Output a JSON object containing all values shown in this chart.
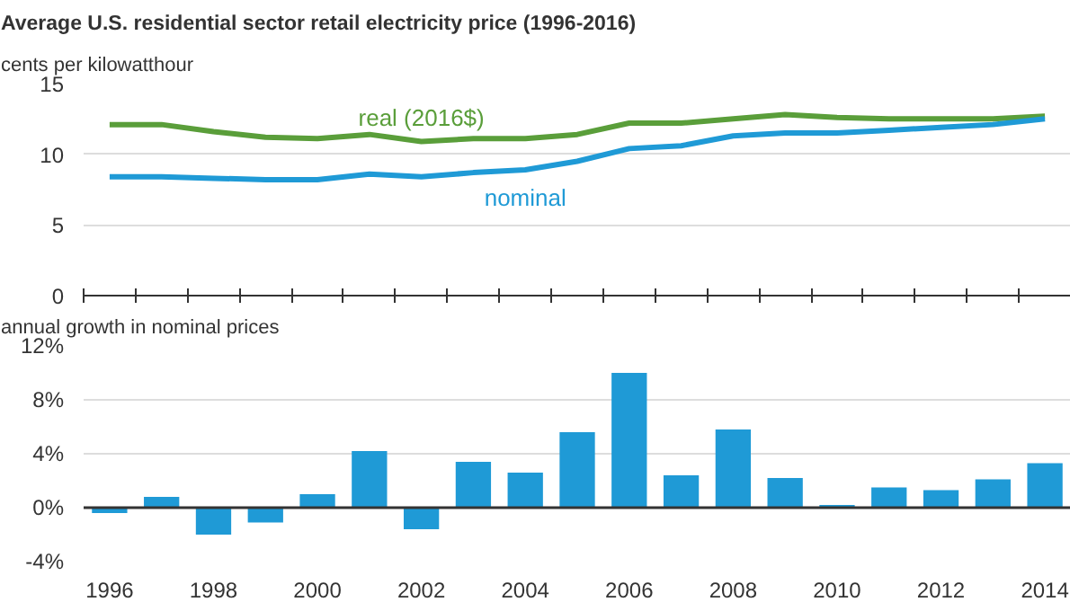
{
  "chart_data": [
    {
      "type": "line",
      "title": "Average U.S. residential sector retail electricity price (1996-2016)",
      "ylabel": "cents per kilowatthour",
      "categories": [
        "1996",
        null,
        "1998",
        null,
        "2000",
        null,
        "2002",
        null,
        "2004",
        null,
        "2006",
        null,
        "2008",
        null,
        "2010",
        null,
        "2012",
        null,
        "2014"
      ],
      "series": [
        {
          "name": "real (2016$)",
          "color": "#5a9e3a",
          "values": [
            12.1,
            12.1,
            11.6,
            11.2,
            11.1,
            11.4,
            10.9,
            11.1,
            11.1,
            11.4,
            12.2,
            12.2,
            12.5,
            12.8,
            12.6,
            12.5,
            12.5,
            12.5,
            12.7
          ]
        },
        {
          "name": "nominal",
          "color": "#1f9ad6",
          "values": [
            8.4,
            8.4,
            8.3,
            8.2,
            8.2,
            8.6,
            8.4,
            8.7,
            8.9,
            9.5,
            10.4,
            10.6,
            11.3,
            11.5,
            11.5,
            11.7,
            11.9,
            12.1,
            12.5
          ]
        }
      ],
      "ylim": [
        0,
        15
      ],
      "yticks": [
        0,
        5,
        10,
        15
      ],
      "grid": "y",
      "legend": false,
      "marker": "none",
      "line_style": "solid",
      "tick_labels": "y"
    },
    {
      "type": "bar",
      "ylabel": "annual growth in nominal prices",
      "categories": [
        "1996",
        null,
        "1998",
        null,
        "2000",
        null,
        "2002",
        null,
        "2004",
        null,
        "2006",
        null,
        "2008",
        null,
        "2010",
        null,
        "2012",
        null,
        "2014"
      ],
      "values": [
        -0.4,
        0.8,
        -2.0,
        -1.1,
        1.0,
        4.2,
        -1.6,
        3.4,
        2.6,
        5.6,
        10.0,
        2.4,
        5.8,
        2.2,
        0.2,
        1.5,
        1.3,
        2.1,
        3.3
      ],
      "color": "#1f9ad6",
      "ylim": [
        -4,
        12
      ],
      "yticks": [
        {
          "value": -4,
          "label": "-4%"
        },
        {
          "value": 0,
          "label": "0%"
        },
        {
          "value": 4,
          "label": "4%"
        },
        {
          "value": 8,
          "label": "8%"
        },
        {
          "value": 12,
          "label": "12%"
        }
      ],
      "grid": "y"
    }
  ]
}
